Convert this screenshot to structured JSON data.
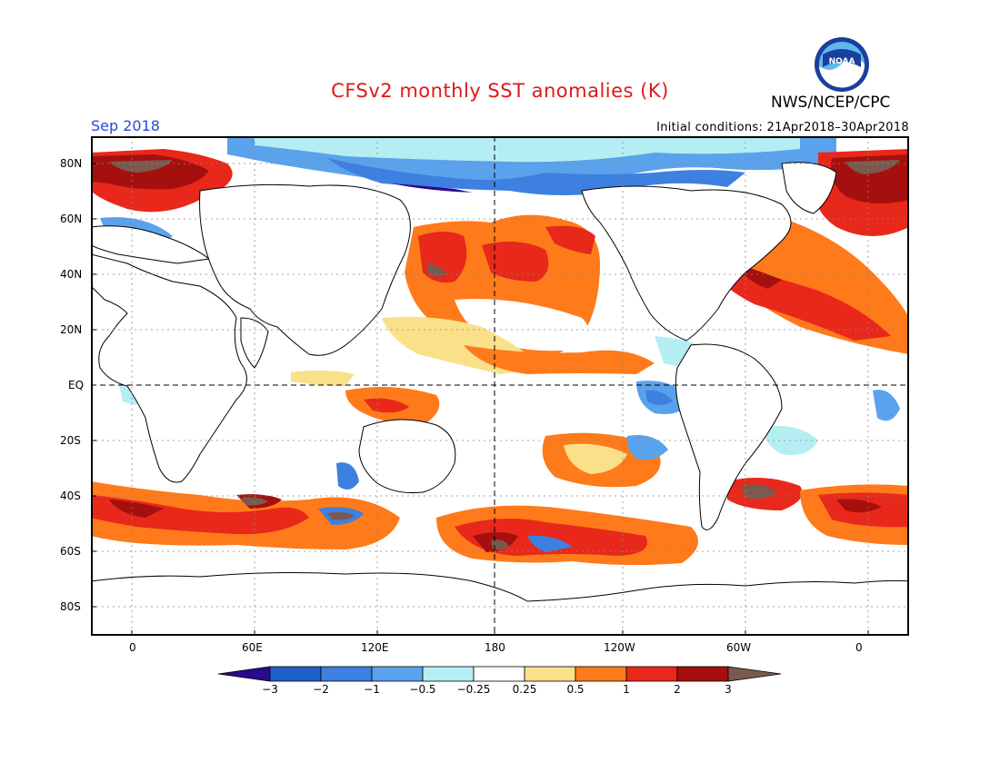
{
  "header": {
    "title": "CFSv2 monthly SST anomalies (K)",
    "agency": "NWS/NCEP/CPC",
    "valid_month": "Sep 2018",
    "initial_conditions": "Initial conditions: 21Apr2018–30Apr2018",
    "logo_text": "NOAA",
    "logo": "noaa-logo"
  },
  "map": {
    "lat_labels": [
      "80N",
      "60N",
      "40N",
      "20N",
      "EQ",
      "20S",
      "40S",
      "60S",
      "80S"
    ],
    "lon_labels": [
      "0",
      "60E",
      "120E",
      "180",
      "120W",
      "60W",
      "0"
    ],
    "lat_range": [
      -90,
      90
    ],
    "lon_range": [
      -20,
      380
    ],
    "grid": "dotted every 30° lon, 20° lat; dashed equator and 180 meridian",
    "variable": "SST anomaly",
    "units": "K"
  },
  "colorbar": {
    "levels": [
      "−3",
      "−2",
      "−1",
      "−0.5",
      "−0.25",
      "0.25",
      "0.5",
      "1",
      "2",
      "3"
    ],
    "colors": [
      "#2a0a8c",
      "#1f5fc9",
      "#3d80e0",
      "#5aa2ec",
      "#b4eef2",
      "#ffffff",
      "#fbe08a",
      "#ff7a1a",
      "#e8281a",
      "#a5100e",
      "#7a5a4e"
    ]
  }
}
